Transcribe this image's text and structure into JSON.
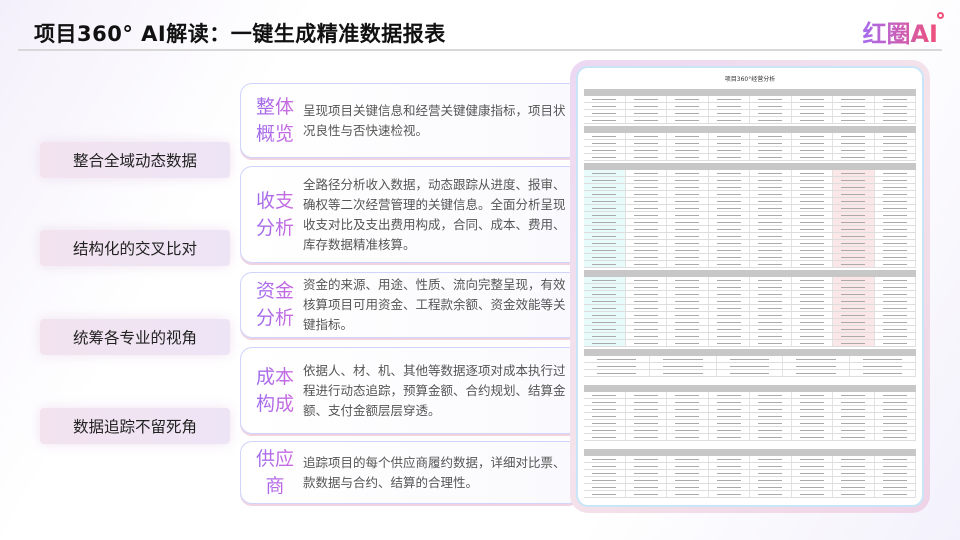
{
  "header": {
    "title": "项目360° AI解读：一键生成精准数据报表",
    "logo": "红圈AI"
  },
  "pills": [
    "整合全域动态数据",
    "结构化的交叉比对",
    "统筹各专业的视角",
    "数据追踪不留死角"
  ],
  "cards": [
    {
      "title": "整体概览",
      "desc": "呈现项目关键信息和经营关键健康指标，项目状况良性与否快速检视。"
    },
    {
      "title": "收支分析",
      "desc": "全路径分析收入数据，动态跟踪从进度、报审、确权等二次经营管理的关键信息。全面分析呈现收支对比及支出费用构成，合同、成本、费用、库存数据精准核算。"
    },
    {
      "title": "资金分析",
      "desc": "资金的来源、用途、性质、流向完整呈现，有效核算项目可用资金、工程款余额、资金效能等关键指标。"
    },
    {
      "title": "成本构成",
      "desc": "依据人、材、机、其他等数据逐项对成本执行过程进行动态追踪，预算金额、合约规划、结算金额、支付金额层层穿透。"
    },
    {
      "title": "供应商",
      "desc": "追踪项目的每个供应商履约数据，详细对比票、款数据与合约、结算的合理性。"
    }
  ],
  "report": {
    "title": "项目360°经营分析"
  }
}
